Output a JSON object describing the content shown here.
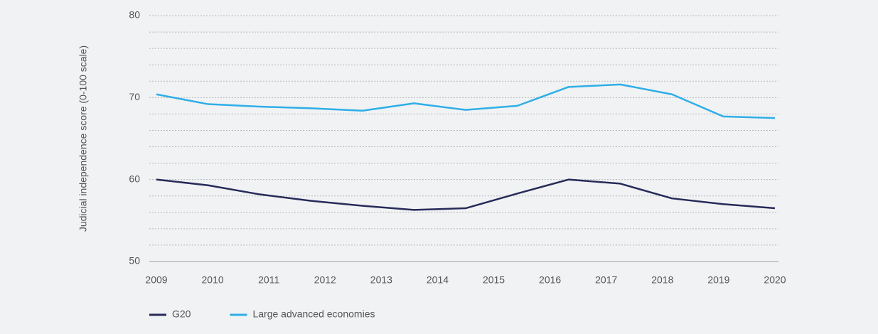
{
  "chart_data": {
    "type": "line",
    "y_label": "Judicial independence score (0-100 scale)",
    "x": [
      2009,
      2009.92,
      2010.83,
      2011.75,
      2012.67,
      2013.58,
      2014.5,
      2015.42,
      2016.33,
      2017.25,
      2018.17,
      2019.08,
      2020
    ],
    "series": [
      {
        "name": "G20",
        "color": "#262b59",
        "values": [
          60.0,
          59.3,
          58.2,
          57.4,
          56.8,
          56.3,
          56.5,
          58.3,
          60.0,
          59.5,
          57.7,
          57.0,
          56.5
        ]
      },
      {
        "name": "Large advanced economies",
        "color": "#2eaee8",
        "values": [
          70.4,
          69.2,
          68.9,
          68.7,
          68.4,
          69.3,
          68.5,
          69.0,
          71.3,
          71.6,
          70.4,
          67.7,
          67.5
        ]
      }
    ],
    "xlim": [
      2009,
      2020
    ],
    "xticks": [
      2009,
      2010,
      2011,
      2012,
      2013,
      2014,
      2015,
      2016,
      2017,
      2018,
      2019,
      2020
    ],
    "ylim": [
      50,
      80
    ],
    "yticks": [
      50,
      60,
      70,
      80
    ],
    "minor_yticks": [
      52,
      54,
      56,
      58,
      62,
      64,
      66,
      68,
      72,
      74,
      76,
      78
    ],
    "grid": true,
    "legend": "bottom"
  }
}
